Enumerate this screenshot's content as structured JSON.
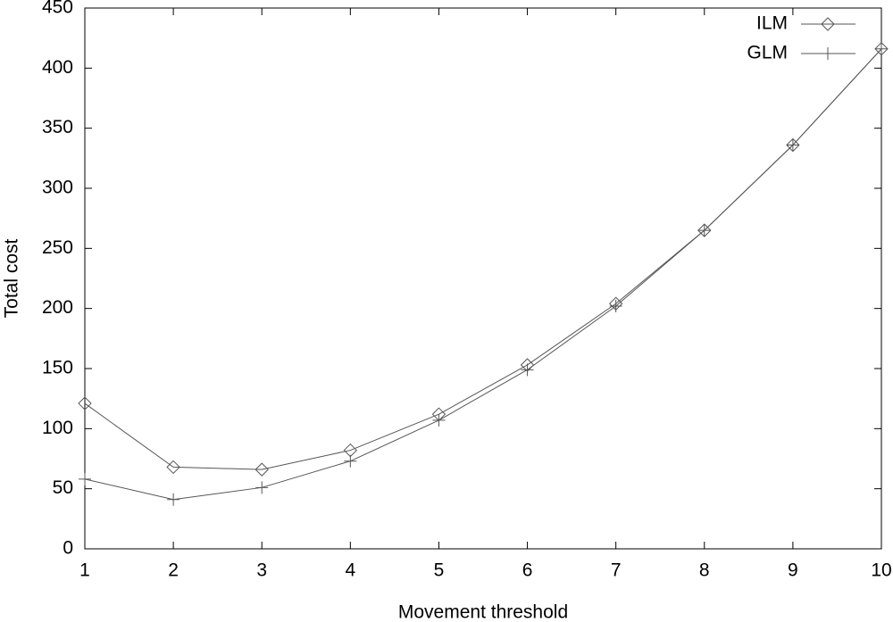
{
  "chart_data": {
    "type": "line",
    "x_label": "Movement threshold",
    "y_label": "Total cost",
    "x": [
      1,
      2,
      3,
      4,
      5,
      6,
      7,
      8,
      9,
      10
    ],
    "series": [
      {
        "name": "ILM",
        "color": "#555555",
        "marker": "diamond",
        "values": [
          121,
          68,
          66,
          82,
          112,
          153,
          204,
          265,
          336,
          416
        ]
      },
      {
        "name": "GLM",
        "color": "#555555",
        "marker": "plus",
        "values": [
          58,
          41,
          51,
          73,
          107,
          149,
          202,
          265,
          336,
          416
        ]
      }
    ],
    "xlim": [
      1,
      10
    ],
    "xticks": [
      1,
      2,
      3,
      4,
      5,
      6,
      7,
      8,
      9,
      10
    ],
    "ylim": [
      0,
      450
    ],
    "yticks": [
      0,
      50,
      100,
      150,
      200,
      250,
      300,
      350,
      400,
      450
    ],
    "grid": false,
    "legend": "top-right"
  }
}
